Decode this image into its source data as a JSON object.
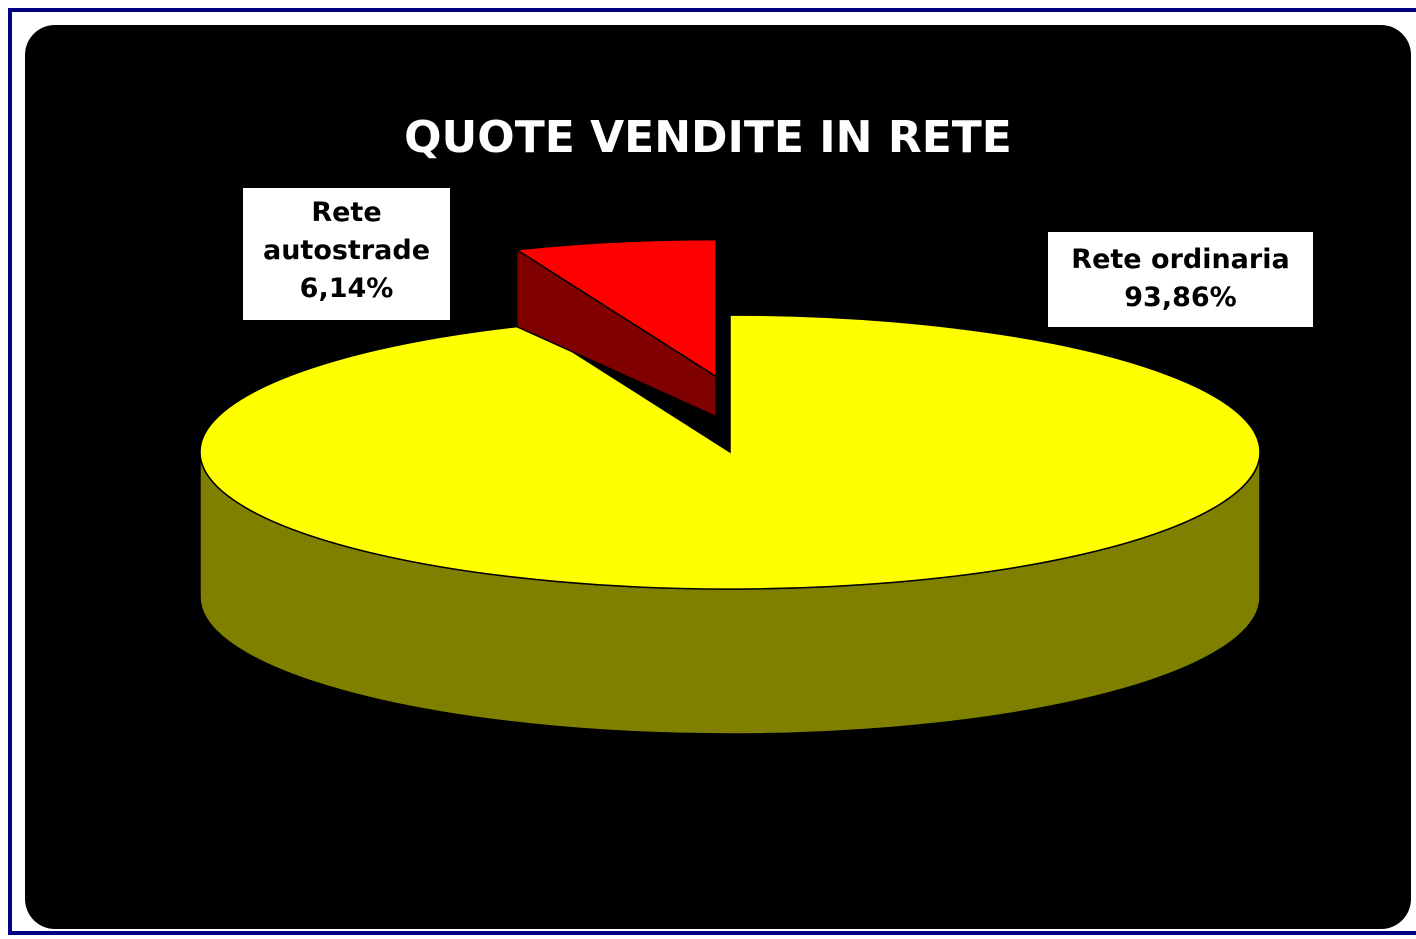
{
  "chart_data": {
    "type": "pie",
    "title": "QUOTE VENDITE IN RETE",
    "categories": [
      "Rete ordinaria",
      "Rete autostrade"
    ],
    "values": [
      93.86,
      6.14
    ],
    "value_labels": [
      "93,86%",
      "6,14%"
    ],
    "colors": [
      "#ffff00",
      "#ff0000"
    ],
    "side_colors": [
      "#808000",
      "#800000"
    ]
  }
}
